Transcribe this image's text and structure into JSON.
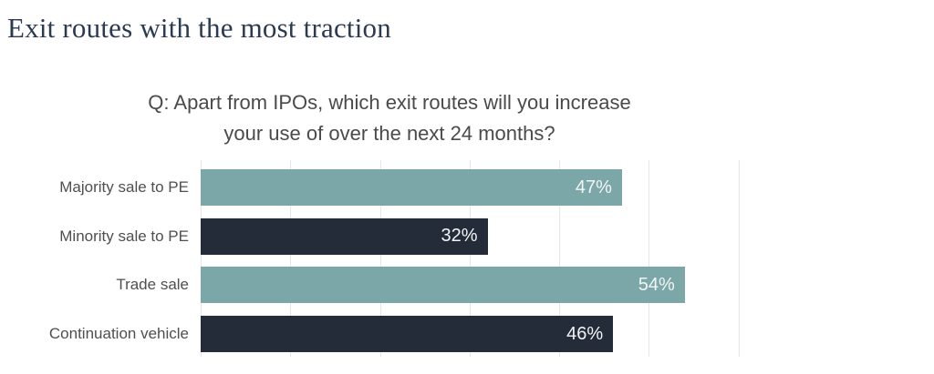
{
  "page": {
    "background": "#ffffff"
  },
  "title": "Exit routes with the most traction",
  "question": {
    "line1": "Q: Apart from IPOs, which exit routes will you increase",
    "line2": "your use of over the next 24 months?"
  },
  "chart_data": {
    "type": "bar",
    "orientation": "horizontal",
    "title": "Exit routes with the most traction",
    "subtitle": "Q: Apart from IPOs, which exit routes will you increase your use of over the next 24 months?",
    "categories": [
      "Majority sale to PE",
      "Minority sale to PE",
      "Trade sale",
      "Continuation vehicle"
    ],
    "values": [
      47,
      32,
      54,
      46
    ],
    "value_labels": [
      "47%",
      "32%",
      "54%",
      "46%"
    ],
    "bar_colors": [
      "#7CA7A9",
      "#242C39",
      "#7CA7A9",
      "#242C39"
    ],
    "xlabel": "",
    "ylabel": "",
    "xlim": [
      0,
      70
    ],
    "gridline_ticks": [
      0,
      10,
      20,
      30,
      40,
      50,
      60
    ],
    "grid": true,
    "legend": false
  },
  "colors": {
    "teal": "#7CA7A9",
    "navy": "#242C39",
    "title_text": "#2B3A52",
    "question_text": "#4A4A4A",
    "label_text": "#4F4F4F",
    "gridline": "#E7E7E7",
    "value_text": "#F2F5F5"
  }
}
